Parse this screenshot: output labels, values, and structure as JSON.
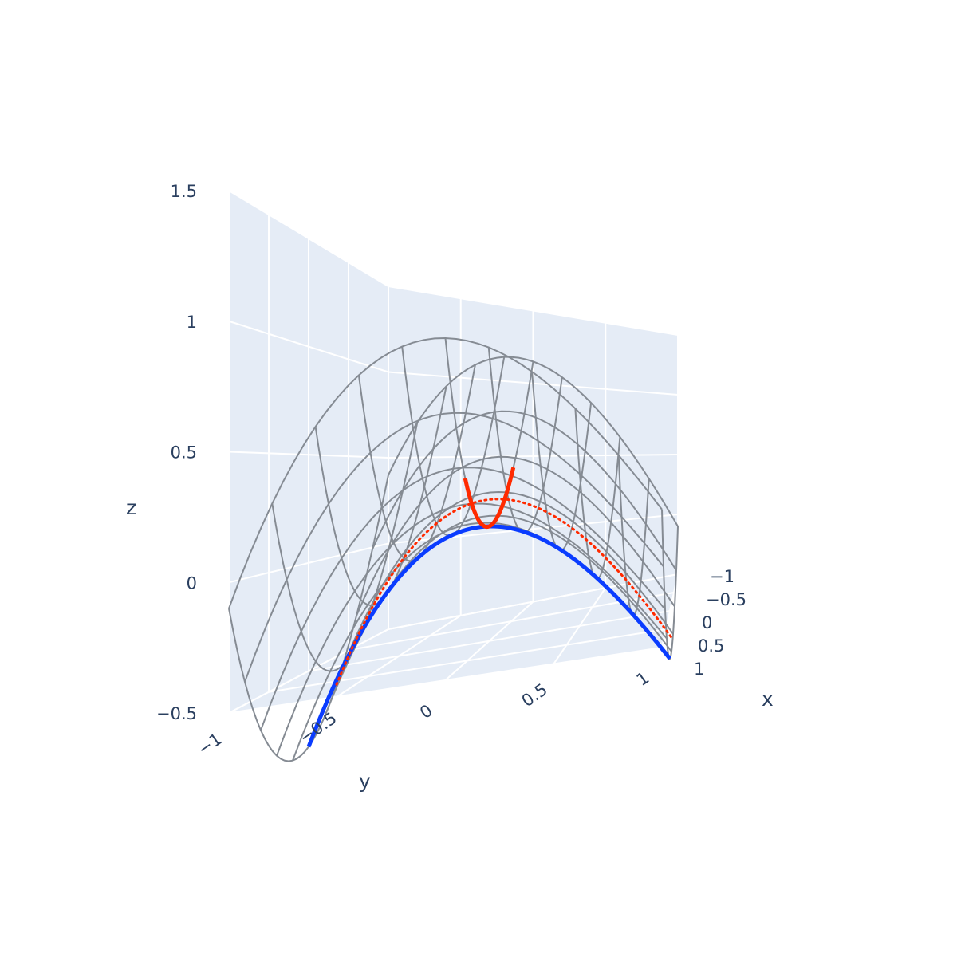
{
  "chart_data": {
    "type": "surface",
    "surface": {
      "x_grid": [
        -1,
        -0.8,
        -0.6,
        -0.4,
        -0.2,
        0,
        0.2,
        0.4,
        0.6,
        0.8,
        1
      ],
      "y_grid": [
        -1,
        -0.8,
        -0.6,
        -0.4,
        -0.2,
        0,
        0.2,
        0.4,
        0.6,
        0.8,
        1
      ],
      "z_rule": "x^2 - y^2 + x*y/4 + 0.15",
      "color": "#858b93"
    },
    "series": [
      {
        "kind": "curve-along-y",
        "color": "#0a3cff",
        "x_fixed": 0,
        "y_range": [
          -1,
          1
        ]
      },
      {
        "kind": "curve-along-x",
        "color": "#ff2a00",
        "y_fixed": 0,
        "x_range": [
          -0.55,
          0.55
        ]
      },
      {
        "kind": "dotted-curve-along-y",
        "color": "#ff2a00",
        "x_fixed": -0.35,
        "y_range": [
          -1,
          1
        ]
      }
    ],
    "axes": {
      "x": {
        "title": "x",
        "ticks": [
          "−1",
          "−0.5",
          "0",
          "0.5",
          "1"
        ],
        "range": [
          -1,
          1
        ]
      },
      "y": {
        "title": "y",
        "ticks": [
          "−1",
          "−0.5",
          "0",
          "0.5",
          "1"
        ],
        "range": [
          -1,
          1
        ]
      },
      "z": {
        "title": "z",
        "ticks": [
          "−0.5",
          "0",
          "0.5",
          "1",
          "1.5"
        ],
        "range": [
          -0.5,
          1.5
        ]
      }
    },
    "colors": {
      "background": "#e5ecf6",
      "grid": "#ffffff",
      "text": "#2a3f5f"
    }
  }
}
